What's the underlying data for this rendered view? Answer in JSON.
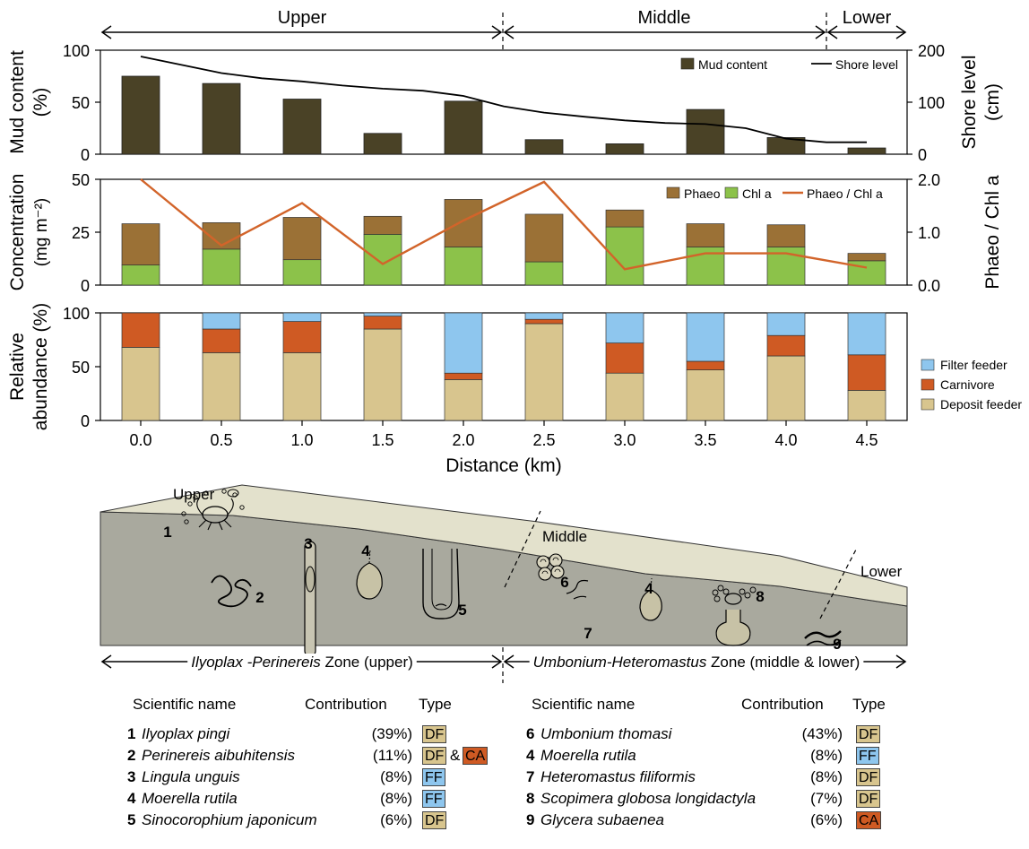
{
  "colors": {
    "mud": "#4a4226",
    "phaeo": "#9b7136",
    "chl": "#8cc24a",
    "ratio_line": "#d2642a",
    "filter_feeder": "#8ec6ee",
    "carnivore": "#cf5a23",
    "deposit_feeder": "#d8c58e",
    "sediment_light": "#e3e1cc",
    "sediment_dark": "#a9a99e",
    "badge_df": "#d8c58e",
    "badge_ff": "#8ec6ee",
    "badge_ca": "#cf5a23"
  },
  "top_zones": [
    {
      "label": "Upper"
    },
    {
      "label": "Middle"
    },
    {
      "label": "Lower"
    }
  ],
  "chart_data": [
    {
      "type": "bar",
      "x": [
        0.0,
        0.5,
        1.0,
        1.5,
        2.0,
        2.5,
        3.0,
        3.5,
        4.0,
        4.5
      ],
      "series": [
        {
          "name": "Mud content",
          "values": [
            75,
            68,
            53,
            20,
            51,
            14,
            10,
            43,
            16,
            6
          ]
        },
        {
          "name": "Shore level",
          "type": "line",
          "axis": "right",
          "x": [
            0.0,
            0.25,
            0.5,
            0.75,
            1.0,
            1.25,
            1.5,
            1.75,
            2.0,
            2.25,
            2.5,
            2.75,
            3.0,
            3.25,
            3.5,
            3.75,
            4.0,
            4.25,
            4.5
          ],
          "values": [
            188,
            172,
            156,
            146,
            140,
            132,
            126,
            122,
            112,
            92,
            80,
            72,
            65,
            60,
            58,
            50,
            30,
            23,
            23
          ]
        }
      ],
      "ylabel_lines": [
        "Mud content",
        "(%)"
      ],
      "y2label_lines": [
        "Shore level",
        "(cm)"
      ],
      "ylim": [
        0,
        100
      ],
      "y2lim": [
        0,
        200
      ],
      "yticks": [
        "0",
        "50",
        "100"
      ],
      "y2ticks": [
        "0",
        "100",
        "200"
      ],
      "legend": [
        "Mud content",
        "Shore level"
      ],
      "legend_position": "top-right"
    },
    {
      "type": "bar",
      "stacked": true,
      "x": [
        0.0,
        0.5,
        1.0,
        1.5,
        2.0,
        2.5,
        3.0,
        3.5,
        4.0,
        4.5
      ],
      "series": [
        {
          "name": "Chl a",
          "values": [
            9.5,
            17,
            12,
            24,
            18,
            11,
            27.5,
            18,
            18,
            11.5
          ]
        },
        {
          "name": "Phaeo",
          "values": [
            19.5,
            12.5,
            20,
            8.5,
            22.5,
            22.5,
            8,
            11,
            10.5,
            3.5
          ]
        },
        {
          "name": "Phaeo / Chl a",
          "type": "line",
          "axis": "right",
          "values": [
            2.0,
            0.75,
            1.55,
            0.4,
            1.22,
            1.95,
            0.3,
            0.6,
            0.6,
            0.33
          ]
        }
      ],
      "ylabel_lines": [
        "Concentration",
        "(mg m⁻²)"
      ],
      "y2label": "Phaeo / Chl a",
      "ylim": [
        0,
        50
      ],
      "y2lim": [
        0,
        2
      ],
      "yticks": [
        "0",
        "25",
        "50"
      ],
      "y2ticks": [
        "0.0",
        "1.0",
        "2.0"
      ],
      "legend": [
        "Phaeo",
        "Chl a",
        "Phaeo / Chl a"
      ],
      "legend_position": "top-right"
    },
    {
      "type": "bar",
      "stacked": true,
      "x": [
        0.0,
        0.5,
        1.0,
        1.5,
        2.0,
        2.5,
        3.0,
        3.5,
        4.0,
        4.5
      ],
      "xticks": [
        "0.0",
        "0.5",
        "1.0",
        "1.5",
        "2.0",
        "2.5",
        "3.0",
        "3.5",
        "4.0",
        "4.5"
      ],
      "series": [
        {
          "name": "Deposit feeder",
          "values": [
            68,
            63,
            63,
            85,
            38,
            90,
            44,
            47,
            60,
            28
          ]
        },
        {
          "name": "Carnivore",
          "values": [
            32,
            22,
            29,
            12,
            6,
            4,
            28,
            8,
            19,
            33
          ]
        },
        {
          "name": "Filter feeder",
          "values": [
            0,
            15,
            8,
            3,
            56,
            6,
            28,
            45,
            21,
            39
          ]
        }
      ],
      "ylabel_lines": [
        "Relative",
        "abundance (%)"
      ],
      "xlabel": "Distance (km)",
      "ylim": [
        0,
        100
      ],
      "yticks": [
        "0",
        "50",
        "100"
      ],
      "legend": [
        "Filter feeder",
        "Carnivore",
        "Deposit feeder"
      ],
      "legend_position": "right"
    }
  ],
  "diagram": {
    "zone_labels": [
      "Upper",
      "Middle",
      "Lower"
    ],
    "organism_numbers": [
      "1",
      "2",
      "3",
      "4",
      "5",
      "6",
      "4",
      "7",
      "8",
      "9"
    ],
    "bottom_zones": [
      {
        "italic": "Ilyoplax -Perinereis",
        "rest": " Zone (upper)"
      },
      {
        "italic": "Umbonium-Heteromastus",
        "rest": " Zone (middle & lower)"
      }
    ]
  },
  "tables": {
    "headers": {
      "name": "Scientific name",
      "contribution": "Contribution",
      "type": "Type"
    },
    "left": [
      {
        "num": "1",
        "name": "Ilyoplax pingi",
        "contribution": "(39%)",
        "types": [
          "DF"
        ]
      },
      {
        "num": "2",
        "name": "Perinereis aibuhitensis",
        "contribution": "(11%)",
        "types": [
          "DF",
          "CA"
        ],
        "joiner": "&"
      },
      {
        "num": "3",
        "name": "Lingula unguis",
        "contribution": "(8%)",
        "types": [
          "FF"
        ]
      },
      {
        "num": "4",
        "name": "Moerella rutila",
        "contribution": "(8%)",
        "types": [
          "FF"
        ]
      },
      {
        "num": "5",
        "name": "Sinocorophium japonicum",
        "contribution": "(6%)",
        "types": [
          "DF"
        ]
      }
    ],
    "right": [
      {
        "num": "6",
        "name": "Umbonium thomasi",
        "contribution": "(43%)",
        "types": [
          "DF"
        ]
      },
      {
        "num": "4",
        "name": "Moerella rutila",
        "contribution": "(8%)",
        "types": [
          "FF"
        ]
      },
      {
        "num": "7",
        "name": "Heteromastus filiformis",
        "contribution": "(8%)",
        "types": [
          "DF"
        ]
      },
      {
        "num": "8",
        "name": "Scopimera globosa longidactyla",
        "contribution": "(7%)",
        "types": [
          "DF"
        ]
      },
      {
        "num": "9",
        "name": "Glycera subaenea",
        "contribution": "(6%)",
        "types": [
          "CA"
        ]
      }
    ]
  }
}
